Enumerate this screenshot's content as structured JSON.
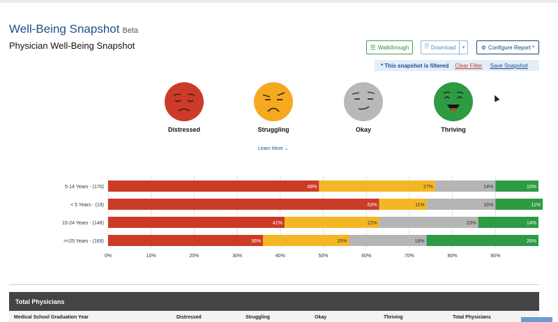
{
  "header": {
    "app_title": "Well-Being Snapshot",
    "beta_label": "Beta",
    "page_title": "Physician Well-Being Snapshot"
  },
  "toolbar": {
    "walkthrough_label": "Walkthrough",
    "download_label": "Download",
    "configure_label": "Configure Report *"
  },
  "filter": {
    "message": "* This snapshot is filtered",
    "clear_label": "Clear Filter",
    "save_label": "Save Snapshot"
  },
  "faces": [
    {
      "label": "Distressed",
      "color": "#cc3b27",
      "icon": "distressed-face-icon"
    },
    {
      "label": "Struggling",
      "color": "#f5a91f",
      "icon": "struggling-face-icon"
    },
    {
      "label": "Okay",
      "color": "#b8b8b8",
      "icon": "okay-face-icon"
    },
    {
      "label": "Thriving",
      "color": "#2e9a44",
      "icon": "thriving-face-icon"
    }
  ],
  "learn_more_label": "Learn More",
  "chart_data": {
    "type": "bar",
    "orientation": "horizontal-stacked",
    "categories": [
      "5-14 Years - (170)",
      "< 5 Years - (19)",
      "15-24 Years - (148)",
      ">=25 Years - (169)"
    ],
    "series": [
      {
        "name": "Distressed",
        "color": "#cc3b27",
        "values": [
          49,
          63,
          41,
          36
        ]
      },
      {
        "name": "Struggling",
        "color": "#f5b624",
        "values": [
          27,
          11,
          22,
          20
        ]
      },
      {
        "name": "Okay",
        "color": "#b5b5b5",
        "values": [
          14,
          16,
          23,
          18
        ]
      },
      {
        "name": "Thriving",
        "color": "#2e9a44",
        "values": [
          10,
          11,
          14,
          26
        ]
      }
    ],
    "xticks": [
      "0%",
      "10%",
      "20%",
      "30%",
      "40%",
      "50%",
      "60%",
      "70%",
      "80%",
      "90%"
    ],
    "xlim": [
      0,
      100
    ],
    "grid": true
  },
  "table": {
    "title": "Total Physicians",
    "columns": [
      "Medical School Graduation Year",
      "Distressed",
      "Struggling",
      "Okay",
      "Thriving",
      "Total Physicians"
    ]
  }
}
